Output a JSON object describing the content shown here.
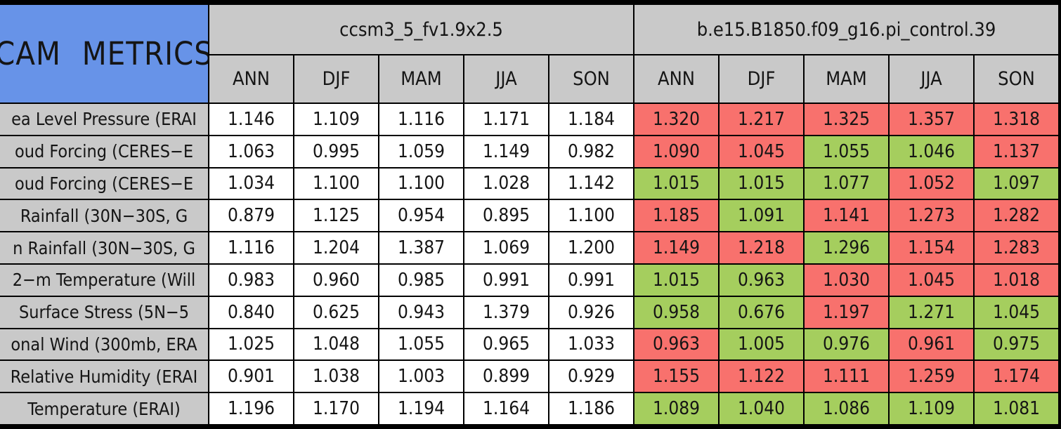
{
  "colors": {
    "corner_bg": "#6793e8",
    "header_bg": "#c9c9c9",
    "better_cell": "#a5ce5e",
    "worse_cell": "#f8716d",
    "neutral_cell": "#ffffff",
    "border": "#000000"
  },
  "chart_data": {
    "type": "table",
    "title": "CAM METRICS",
    "column_groups": [
      {
        "name": "ccsm3_5_fv1.9x2.5",
        "seasons": [
          "ANN",
          "DJF",
          "MAM",
          "JJA",
          "SON"
        ]
      },
      {
        "name": "b.e15.B1850.f09_g16.pi_control.39",
        "seasons": [
          "ANN",
          "DJF",
          "MAM",
          "JJA",
          "SON"
        ]
      }
    ],
    "cell_status_colors": {
      "better": "#a5ce5e",
      "worse": "#f8716d"
    },
    "rows": [
      {
        "label": "ea Level Pressure (ERAI",
        "m1": [
          "1.146",
          "1.109",
          "1.116",
          "1.171",
          "1.184"
        ],
        "m2": [
          {
            "v": "1.320",
            "s": "worse"
          },
          {
            "v": "1.217",
            "s": "worse"
          },
          {
            "v": "1.325",
            "s": "worse"
          },
          {
            "v": "1.357",
            "s": "worse"
          },
          {
            "v": "1.318",
            "s": "worse"
          }
        ]
      },
      {
        "label": "oud Forcing (CERES−E",
        "m1": [
          "1.063",
          "0.995",
          "1.059",
          "1.149",
          "0.982"
        ],
        "m2": [
          {
            "v": "1.090",
            "s": "worse"
          },
          {
            "v": "1.045",
            "s": "worse"
          },
          {
            "v": "1.055",
            "s": "better"
          },
          {
            "v": "1.046",
            "s": "better"
          },
          {
            "v": "1.137",
            "s": "worse"
          }
        ]
      },
      {
        "label": "oud Forcing (CERES−E",
        "m1": [
          "1.034",
          "1.100",
          "1.100",
          "1.028",
          "1.142"
        ],
        "m2": [
          {
            "v": "1.015",
            "s": "better"
          },
          {
            "v": "1.015",
            "s": "better"
          },
          {
            "v": "1.077",
            "s": "better"
          },
          {
            "v": "1.052",
            "s": "worse"
          },
          {
            "v": "1.097",
            "s": "better"
          }
        ]
      },
      {
        "label": "Rainfall (30N−30S, G",
        "m1": [
          "0.879",
          "1.125",
          "0.954",
          "0.895",
          "1.100"
        ],
        "m2": [
          {
            "v": "1.185",
            "s": "worse"
          },
          {
            "v": "1.091",
            "s": "better"
          },
          {
            "v": "1.141",
            "s": "worse"
          },
          {
            "v": "1.273",
            "s": "worse"
          },
          {
            "v": "1.282",
            "s": "worse"
          }
        ]
      },
      {
        "label": "n Rainfall (30N−30S, G",
        "m1": [
          "1.116",
          "1.204",
          "1.387",
          "1.069",
          "1.200"
        ],
        "m2": [
          {
            "v": "1.149",
            "s": "worse"
          },
          {
            "v": "1.218",
            "s": "worse"
          },
          {
            "v": "1.296",
            "s": "better"
          },
          {
            "v": "1.154",
            "s": "worse"
          },
          {
            "v": "1.283",
            "s": "worse"
          }
        ]
      },
      {
        "label": "2−m Temperature (Will",
        "m1": [
          "0.983",
          "0.960",
          "0.985",
          "0.991",
          "0.991"
        ],
        "m2": [
          {
            "v": "1.015",
            "s": "better"
          },
          {
            "v": "0.963",
            "s": "better"
          },
          {
            "v": "1.030",
            "s": "worse"
          },
          {
            "v": "1.045",
            "s": "worse"
          },
          {
            "v": "1.018",
            "s": "worse"
          }
        ]
      },
      {
        "label": "Surface Stress (5N−5",
        "m1": [
          "0.840",
          "0.625",
          "0.943",
          "1.379",
          "0.926"
        ],
        "m2": [
          {
            "v": "0.958",
            "s": "better"
          },
          {
            "v": "0.676",
            "s": "better"
          },
          {
            "v": "1.197",
            "s": "worse"
          },
          {
            "v": "1.271",
            "s": "better"
          },
          {
            "v": "1.045",
            "s": "better"
          }
        ]
      },
      {
        "label": "onal Wind (300mb, ERA",
        "m1": [
          "1.025",
          "1.048",
          "1.055",
          "0.965",
          "1.033"
        ],
        "m2": [
          {
            "v": "0.963",
            "s": "worse"
          },
          {
            "v": "1.005",
            "s": "better"
          },
          {
            "v": "0.976",
            "s": "better"
          },
          {
            "v": "0.961",
            "s": "worse"
          },
          {
            "v": "0.975",
            "s": "better"
          }
        ]
      },
      {
        "label": "Relative Humidity (ERAI",
        "m1": [
          "0.901",
          "1.038",
          "1.003",
          "0.899",
          "0.929"
        ],
        "m2": [
          {
            "v": "1.155",
            "s": "worse"
          },
          {
            "v": "1.122",
            "s": "worse"
          },
          {
            "v": "1.111",
            "s": "worse"
          },
          {
            "v": "1.259",
            "s": "worse"
          },
          {
            "v": "1.174",
            "s": "worse"
          }
        ]
      },
      {
        "label": "Temperature (ERAI)",
        "m1": [
          "1.196",
          "1.170",
          "1.194",
          "1.164",
          "1.186"
        ],
        "m2": [
          {
            "v": "1.089",
            "s": "better"
          },
          {
            "v": "1.040",
            "s": "better"
          },
          {
            "v": "1.086",
            "s": "better"
          },
          {
            "v": "1.109",
            "s": "better"
          },
          {
            "v": "1.081",
            "s": "better"
          }
        ]
      }
    ]
  }
}
